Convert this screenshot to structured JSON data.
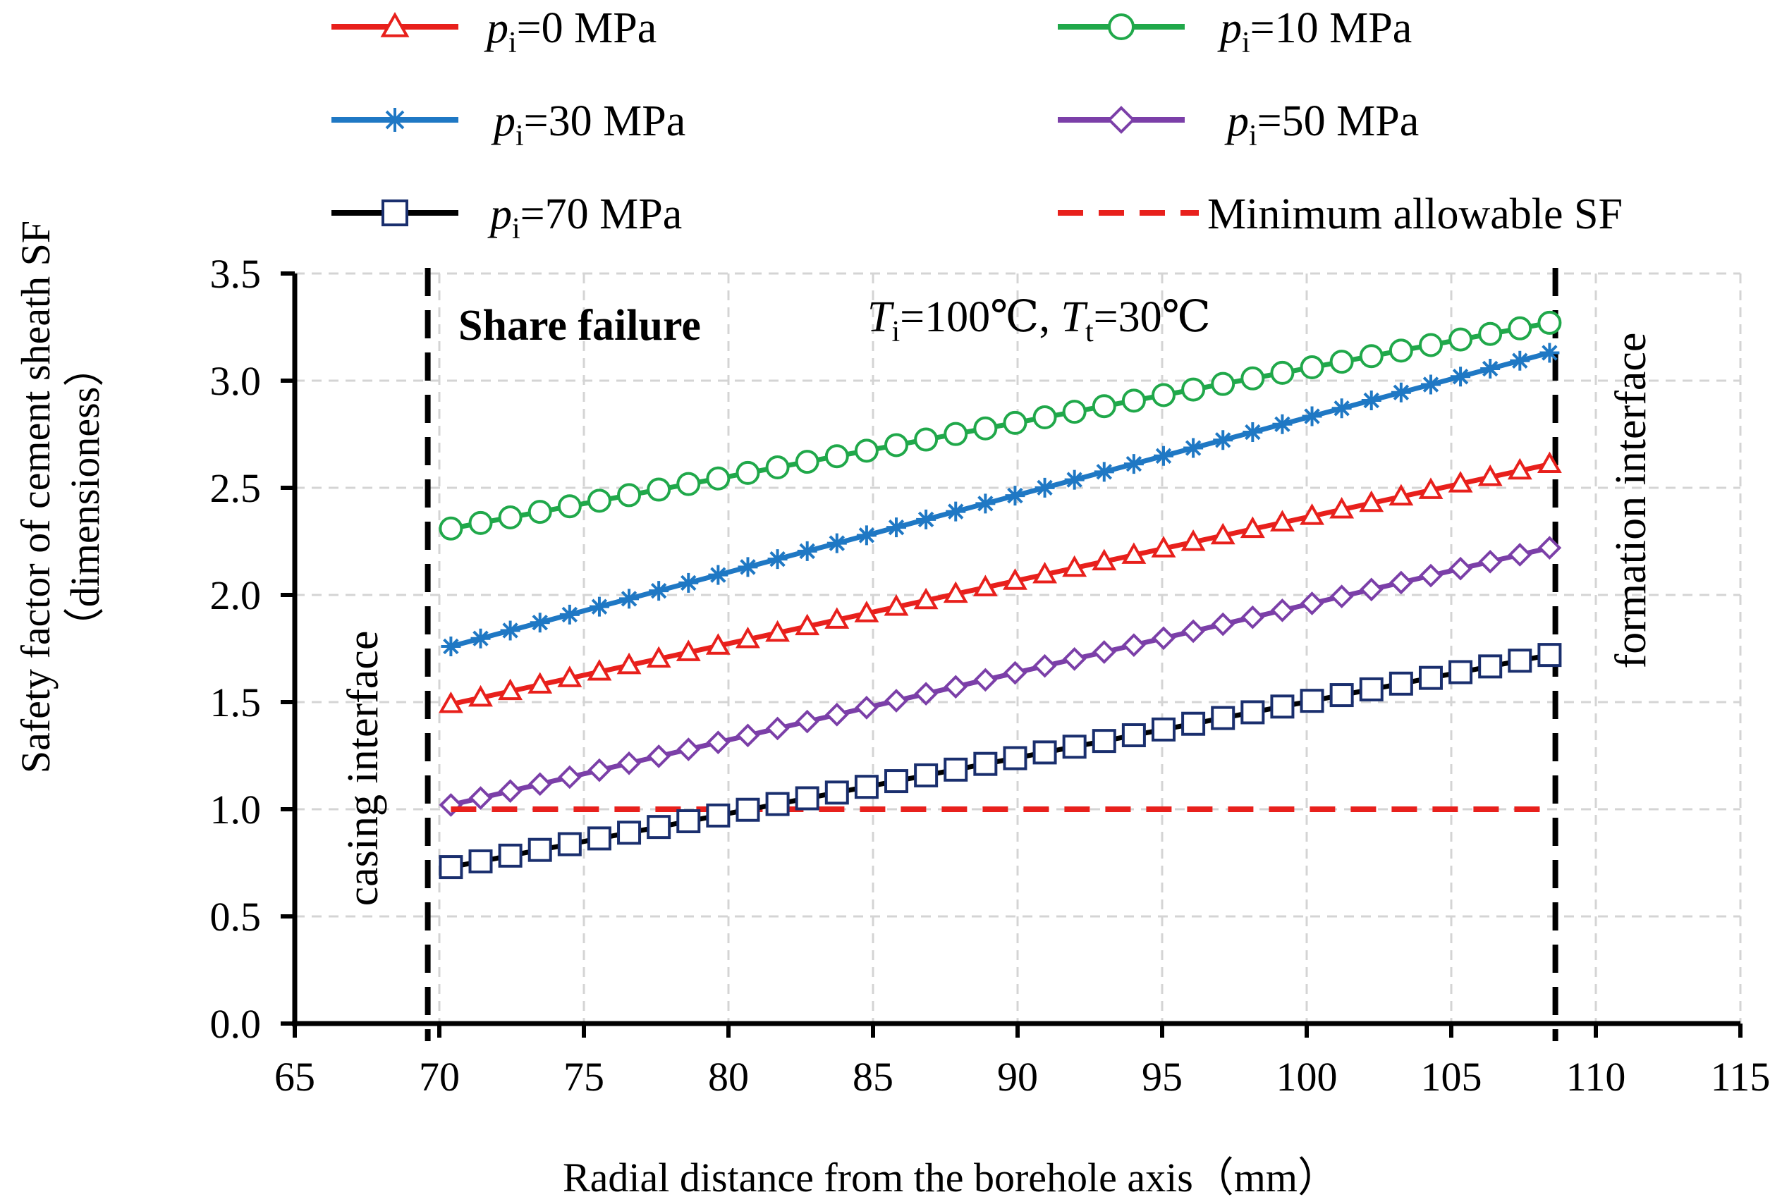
{
  "chart_data": {
    "type": "line",
    "title": "",
    "xlabel": "Radial distance from  the borehole axis（mm）",
    "ylabel_line1": "Safety factor of cement sheath SF",
    "ylabel_line2": "（dimensioness）",
    "xlim": [
      65,
      115
    ],
    "ylim": [
      0,
      3.5
    ],
    "grid": true,
    "x_ticks": [
      "65",
      "70",
      "75",
      "80",
      "85",
      "90",
      "95",
      "100",
      "105",
      "110",
      "115"
    ],
    "y_ticks": [
      "0.0",
      "0.5",
      "1.0",
      "1.5",
      "2.0",
      "2.5",
      "3.0",
      "3.5"
    ],
    "x_range_of_data": [
      70.4,
      108.4
    ],
    "point_count": 38,
    "series": [
      {
        "name_italic": "p",
        "name_sub": "i",
        "name_rest": "=0 MPa",
        "color": "#e8201c",
        "marker": "triangle",
        "start": 1.49,
        "end": 2.61
      },
      {
        "name_italic": "p",
        "name_sub": "i",
        "name_rest": "=10 MPa",
        "color": "#20a84a",
        "marker": "circle",
        "start": 2.31,
        "end": 3.27
      },
      {
        "name_italic": "p",
        "name_sub": "i",
        "name_rest": "=30 MPa",
        "color": "#1f78c4",
        "marker": "asterisk",
        "start": 1.76,
        "end": 3.13
      },
      {
        "name_italic": "p",
        "name_sub": "i",
        "name_rest": "=50 MPa",
        "color": "#7b3fa8",
        "marker": "diamond",
        "start": 1.02,
        "end": 2.22
      },
      {
        "name_italic": "p",
        "name_sub": "i",
        "name_rest": "=70 MPa",
        "color": "#000000",
        "marker_color": "#1a2f6e",
        "marker": "square",
        "start": 0.73,
        "end": 1.72
      }
    ],
    "reference_line": {
      "name": "Minimum allowable SF",
      "color": "#e8201c",
      "y": 1.0,
      "x": [
        70.4,
        108.4
      ]
    },
    "boundaries": [
      {
        "x": 69.6,
        "label": "casing  interface"
      },
      {
        "x": 108.6,
        "label": "formation  interface"
      }
    ],
    "annotations": {
      "failure": "Share failure",
      "temp_T1": "T",
      "temp_sub1": "i",
      "temp_mid": "=100℃,  ",
      "temp_T2": "T",
      "temp_sub2": "t",
      "temp_end": "=30℃"
    }
  }
}
